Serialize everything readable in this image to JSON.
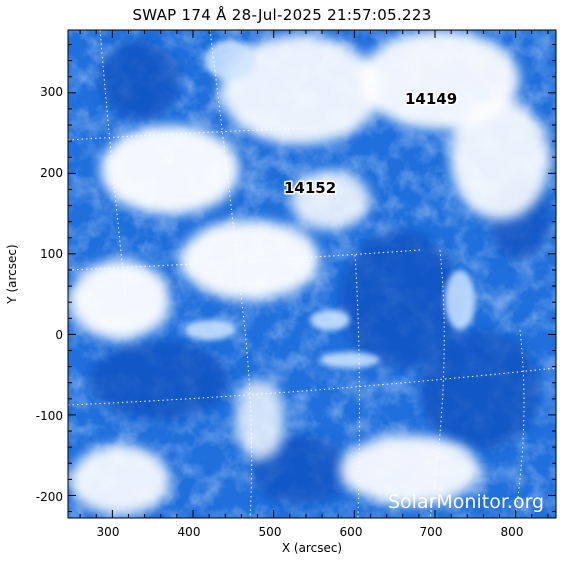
{
  "title": "SWAP 174 Å 28-Jul-2025 21:57:05.223",
  "x_axis": {
    "label": "X (arcsec)",
    "ticks": [
      "300",
      "400",
      "500",
      "600",
      "700",
      "800"
    ],
    "range": [
      245,
      850
    ]
  },
  "y_axis": {
    "label": "Y (arcsec)",
    "ticks": [
      "300",
      "200",
      "100",
      "0",
      "-100",
      "-200"
    ],
    "range": [
      -228,
      378
    ]
  },
  "active_regions": [
    {
      "label": "14149"
    },
    {
      "label": "14152"
    }
  ],
  "watermark": "SolarMonitor.org",
  "colors": {
    "plasma_dark": "#0a55c8",
    "plasma_mid": "#3b8ff0",
    "plasma_light": "#a9d2ff",
    "grid": "#ffffff"
  }
}
